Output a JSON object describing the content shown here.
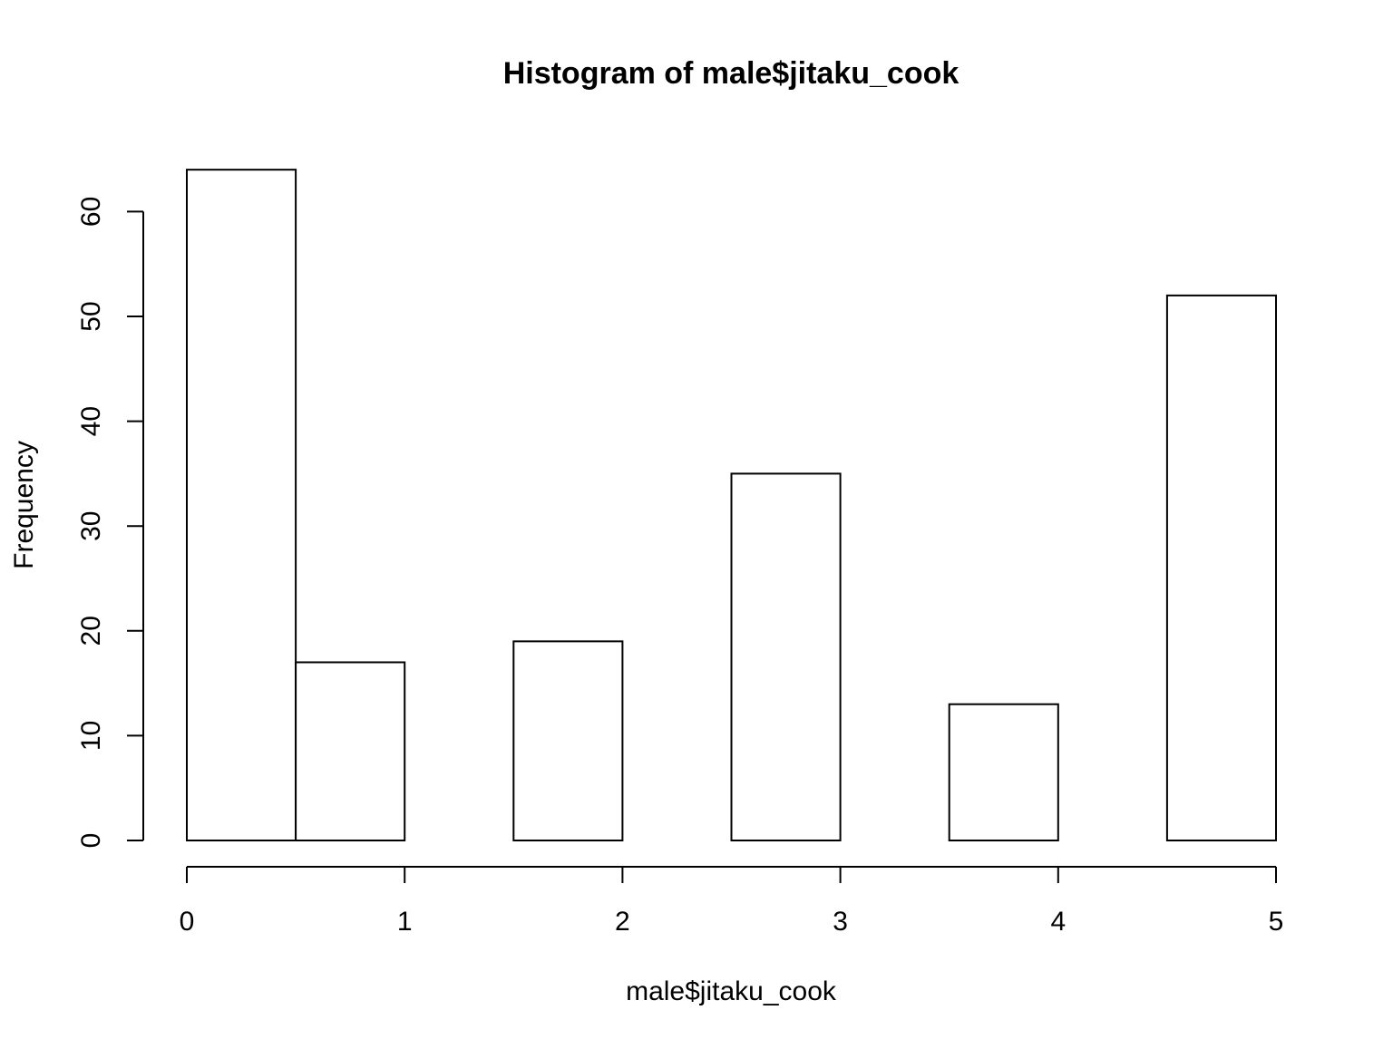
{
  "chart_data": {
    "type": "bar",
    "title": "Histogram of male$jitaku_cook",
    "xlabel": "male$jitaku_cook",
    "ylabel": "Frequency",
    "bins": [
      {
        "start": 0.0,
        "end": 0.5,
        "value": 64
      },
      {
        "start": 0.5,
        "end": 1.0,
        "value": 17
      },
      {
        "start": 1.0,
        "end": 1.5,
        "value": 0
      },
      {
        "start": 1.5,
        "end": 2.0,
        "value": 19
      },
      {
        "start": 2.0,
        "end": 2.5,
        "value": 0
      },
      {
        "start": 2.5,
        "end": 3.0,
        "value": 35
      },
      {
        "start": 3.0,
        "end": 3.5,
        "value": 0
      },
      {
        "start": 3.5,
        "end": 4.0,
        "value": 13
      },
      {
        "start": 4.0,
        "end": 4.5,
        "value": 0
      },
      {
        "start": 4.5,
        "end": 5.0,
        "value": 52
      }
    ],
    "xlim": [
      0,
      5
    ],
    "ylim": [
      0,
      64
    ],
    "x_ticks": [
      "0",
      "1",
      "2",
      "3",
      "4",
      "5"
    ],
    "y_ticks": [
      "0",
      "10",
      "20",
      "30",
      "40",
      "50",
      "60"
    ],
    "grid": false,
    "legend": "none",
    "colors": {
      "bar_fill": "#ffffff",
      "bar_stroke": "#000000",
      "background": "#ffffff"
    }
  }
}
